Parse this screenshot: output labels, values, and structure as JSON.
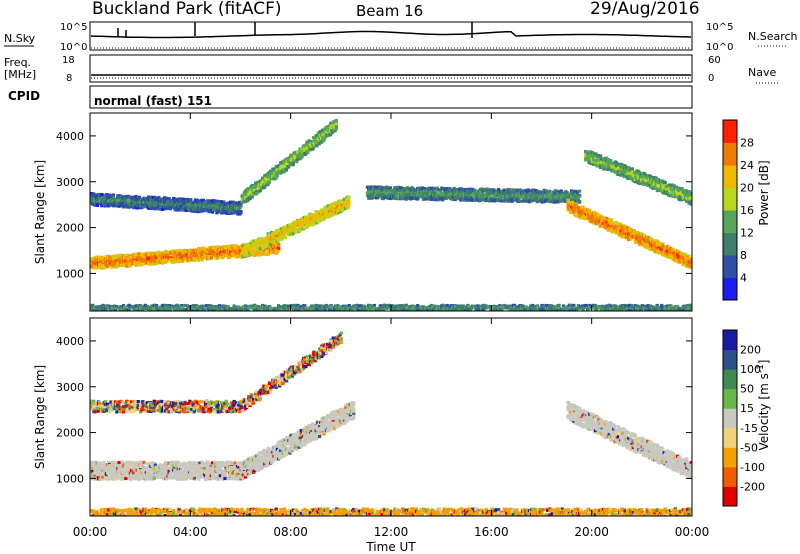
{
  "header": {
    "station": "Buckland Park (fitACF)",
    "beam": "Beam 16",
    "date": "29/Aug/2016"
  },
  "noise_panel": {
    "left_label": "N.Sky",
    "right_label": "N.Search",
    "left_ticks": [
      "10^5",
      "10^0"
    ],
    "right_ticks": [
      "10^5",
      "10^0"
    ]
  },
  "freq_panel": {
    "left_label_1": "Freq.",
    "left_label_2": "[MHz]",
    "right_label": "Nave",
    "left_ticks": [
      "18",
      "8"
    ],
    "right_ticks": [
      "60",
      "0"
    ]
  },
  "cpid_panel": {
    "label": "CPID",
    "text": "normal (fast) 151"
  },
  "colors": {
    "power_scale": [
      "#1d1df0",
      "#2d4fa6",
      "#3e7f6e",
      "#57a45a",
      "#b8d81e",
      "#f0b800",
      "#f07a00",
      "#ff2200"
    ],
    "velocity_scale": [
      "#e00000",
      "#f05a00",
      "#f3a000",
      "#f0d27a",
      "#c9c9c0",
      "#6ab84a",
      "#3f8a50",
      "#2d4f8a",
      "#1a1aa0"
    ]
  },
  "chart_data": [
    {
      "type": "heatmap",
      "name": "Power",
      "ylabel": "Slant Range [km]",
      "ylim": [
        180,
        4500
      ],
      "xlim": [
        "00:00",
        "24:00"
      ],
      "yticks": [
        "1000",
        "2000",
        "3000",
        "4000"
      ],
      "colorbar": {
        "label": "Power [dB]",
        "ticks": [
          "4",
          "8",
          "12",
          "16",
          "20",
          "24",
          "28"
        ],
        "range": [
          0,
          32
        ]
      },
      "features": [
        {
          "label": "near-range band",
          "time_start": 0.0,
          "time_end": 7.5,
          "range_center": 1250,
          "range_end_center": 1600,
          "power": 24
        },
        {
          "label": "near-range rise",
          "time_start": 6.0,
          "time_end": 10.3,
          "range_center": 1500,
          "range_end_center": 2600,
          "power": 20
        },
        {
          "label": "far band",
          "time_start": 0.0,
          "time_end": 6.0,
          "range_center": 2650,
          "range_end_center": 2450,
          "power": 8
        },
        {
          "label": "far rise",
          "time_start": 6.0,
          "time_end": 9.8,
          "range_center": 2650,
          "range_end_center": 4300,
          "power": 14
        },
        {
          "label": "midday patches",
          "time_start": 11.0,
          "time_end": 19.5,
          "range_center": 2800,
          "range_end_center": 2700,
          "power": 10
        },
        {
          "label": "evening descent",
          "time_start": 19.0,
          "time_end": 24.0,
          "range_center": 2500,
          "range_end_center": 1250,
          "power": 24
        },
        {
          "label": "evening upper band",
          "time_start": 19.7,
          "time_end": 24.0,
          "range_center": 3600,
          "range_end_center": 2650,
          "power": 14
        },
        {
          "label": "ground scatter floor",
          "time_start": 0.0,
          "time_end": 24.0,
          "range_center": 280,
          "range_end_center": 280,
          "power": 10
        }
      ]
    },
    {
      "type": "heatmap",
      "name": "Velocity",
      "ylabel": "Slant Range [km]",
      "xlabel": "Time UT",
      "ylim": [
        180,
        4500
      ],
      "xlim": [
        "00:00",
        "24:00"
      ],
      "xticks": [
        "00:00",
        "04:00",
        "08:00",
        "12:00",
        "16:00",
        "20:00",
        "00:00"
      ],
      "yticks": [
        "1000",
        "2000",
        "3000",
        "4000"
      ],
      "colorbar": {
        "label_main": "Velocity [m s",
        "label_sup": "-1",
        "label_end": "]",
        "ticks": [
          "200",
          "100",
          "50",
          "15",
          "-15",
          "-50",
          "-100",
          "-200"
        ]
      },
      "features": [
        {
          "label": "ground scatter band",
          "time_start": 0.0,
          "time_end": 24.0,
          "range_center": 1200,
          "velocity": 0
        },
        {
          "label": "far band mixed",
          "time_start": 0.0,
          "time_end": 10.0,
          "range_center": 2600,
          "velocity": 100
        },
        {
          "label": "floor echoes",
          "time_start": 0.0,
          "time_end": 24.0,
          "range_center": 250,
          "velocity": -80
        }
      ]
    }
  ]
}
